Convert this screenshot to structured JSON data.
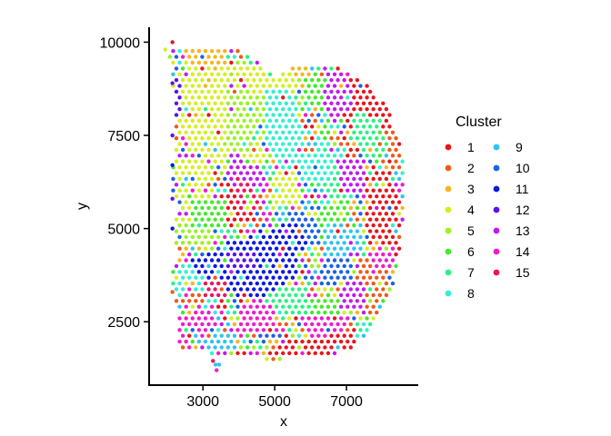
{
  "chart_data": {
    "type": "scatter",
    "title": "",
    "xlabel": "x",
    "ylabel": "y",
    "xlim": [
      1500,
      9000
    ],
    "ylim": [
      800,
      10400
    ],
    "x_ticks": [
      3000,
      5000,
      7000
    ],
    "y_ticks": [
      2500,
      5000,
      7500,
      10000
    ],
    "grid": false,
    "legend": {
      "title": "Cluster",
      "placement": "right",
      "columns": 2,
      "entries": [
        {
          "label": "1",
          "color": "#e8151b"
        },
        {
          "label": "2",
          "color": "#f05a17"
        },
        {
          "label": "3",
          "color": "#f7b421"
        },
        {
          "label": "4",
          "color": "#d5ef1e"
        },
        {
          "label": "5",
          "color": "#9af221"
        },
        {
          "label": "6",
          "color": "#43ea2b"
        },
        {
          "label": "7",
          "color": "#29f283"
        },
        {
          "label": "8",
          "color": "#2ff0d3"
        },
        {
          "label": "9",
          "color": "#2ec3f3"
        },
        {
          "label": "10",
          "color": "#1a62e6"
        },
        {
          "label": "11",
          "color": "#0a19e3"
        },
        {
          "label": "12",
          "color": "#5b11ed"
        },
        {
          "label": "13",
          "color": "#c21af0"
        },
        {
          "label": "14",
          "color": "#f01ccd"
        },
        {
          "label": "15",
          "color": "#ef145e"
        }
      ]
    },
    "spot_spacing": 180,
    "regions": [
      {
        "cluster": "1",
        "polygon": [
          [
            6700,
            9000
          ],
          [
            7600,
            9000
          ],
          [
            8300,
            8200
          ],
          [
            8200,
            7600
          ],
          [
            7500,
            7600
          ],
          [
            6800,
            8000
          ]
        ]
      },
      {
        "cluster": "1",
        "polygon": [
          [
            7500,
            6500
          ],
          [
            8300,
            6500
          ],
          [
            8500,
            5200
          ],
          [
            8300,
            4300
          ],
          [
            7600,
            4300
          ]
        ]
      },
      {
        "cluster": "1",
        "polygon": [
          [
            6000,
            2300
          ],
          [
            7000,
            2300
          ],
          [
            7500,
            1800
          ],
          [
            5500,
            1500
          ],
          [
            4800,
            1700
          ]
        ]
      },
      {
        "cluster": "1",
        "polygon": [
          [
            3700,
            6200
          ],
          [
            4300,
            6000
          ],
          [
            4500,
            5200
          ],
          [
            3800,
            5000
          ],
          [
            3200,
            5500
          ]
        ]
      },
      {
        "cluster": "2",
        "polygon": [
          [
            8100,
            7600
          ],
          [
            8400,
            7600
          ],
          [
            8500,
            6600
          ],
          [
            8200,
            6500
          ]
        ]
      },
      {
        "cluster": "2",
        "polygon": [
          [
            3500,
            4300
          ],
          [
            4300,
            4300
          ],
          [
            4400,
            3600
          ],
          [
            3600,
            3500
          ]
        ]
      },
      {
        "cluster": "2",
        "polygon": [
          [
            7300,
            4200
          ],
          [
            8200,
            4200
          ],
          [
            8100,
            2700
          ],
          [
            7500,
            2600
          ]
        ]
      },
      {
        "cluster": "2",
        "polygon": [
          [
            2200,
            3300
          ],
          [
            3000,
            3300
          ],
          [
            3000,
            2700
          ],
          [
            2200,
            2700
          ]
        ]
      },
      {
        "cluster": "3",
        "polygon": [
          [
            2500,
            9900
          ],
          [
            3700,
            9900
          ],
          [
            3700,
            9000
          ],
          [
            2600,
            9000
          ]
        ]
      },
      {
        "cluster": "3",
        "polygon": [
          [
            2200,
            8700
          ],
          [
            2900,
            8700
          ],
          [
            2900,
            7800
          ],
          [
            2200,
            7800
          ]
        ]
      },
      {
        "cluster": "3",
        "polygon": [
          [
            5400,
            9300
          ],
          [
            6000,
            9300
          ],
          [
            6000,
            8800
          ],
          [
            5400,
            8700
          ]
        ]
      },
      {
        "cluster": "4",
        "polygon": [
          [
            2300,
            9300
          ],
          [
            4600,
            9300
          ],
          [
            5100,
            8800
          ],
          [
            4600,
            6500
          ],
          [
            3600,
            6600
          ],
          [
            2300,
            7200
          ]
        ]
      },
      {
        "cluster": "4",
        "polygon": [
          [
            2200,
            6900
          ],
          [
            3200,
            6900
          ],
          [
            3500,
            5200
          ],
          [
            3000,
            4500
          ],
          [
            2200,
            4700
          ]
        ]
      },
      {
        "cluster": "4",
        "polygon": [
          [
            5000,
            9000
          ],
          [
            5400,
            9300
          ],
          [
            5700,
            8900
          ],
          [
            5500,
            8500
          ],
          [
            5000,
            8500
          ]
        ]
      },
      {
        "cluster": "4",
        "polygon": [
          [
            5000,
            6500
          ],
          [
            5500,
            6500
          ],
          [
            5800,
            5800
          ],
          [
            5300,
            5500
          ],
          [
            4900,
            5800
          ]
        ]
      },
      {
        "cluster": "5",
        "polygon": [
          [
            3700,
            8800
          ],
          [
            4700,
            8600
          ],
          [
            4800,
            7600
          ],
          [
            4200,
            7000
          ],
          [
            3600,
            7200
          ]
        ]
      },
      {
        "cluster": "5",
        "polygon": [
          [
            2200,
            5200
          ],
          [
            3300,
            5200
          ],
          [
            3300,
            4600
          ],
          [
            2200,
            4600
          ]
        ]
      },
      {
        "cluster": "6",
        "polygon": [
          [
            2700,
            5800
          ],
          [
            3700,
            5800
          ],
          [
            3600,
            5100
          ],
          [
            2700,
            5000
          ]
        ]
      },
      {
        "cluster": "6",
        "polygon": [
          [
            5800,
            9000
          ],
          [
            6500,
            9100
          ],
          [
            6800,
            8600
          ],
          [
            6500,
            8000
          ],
          [
            5900,
            8400
          ]
        ]
      },
      {
        "cluster": "6",
        "polygon": [
          [
            6000,
            5500
          ],
          [
            7000,
            5800
          ],
          [
            7300,
            5000
          ],
          [
            6600,
            4600
          ],
          [
            6000,
            4700
          ]
        ]
      },
      {
        "cluster": "6",
        "polygon": [
          [
            5700,
            3200
          ],
          [
            6800,
            3200
          ],
          [
            6900,
            2500
          ],
          [
            6000,
            2300
          ]
        ]
      },
      {
        "cluster": "7",
        "polygon": [
          [
            4800,
            3400
          ],
          [
            5900,
            3400
          ],
          [
            6000,
            2700
          ],
          [
            4800,
            2700
          ]
        ]
      },
      {
        "cluster": "7",
        "polygon": [
          [
            6200,
            6900
          ],
          [
            7200,
            6900
          ],
          [
            7500,
            6300
          ],
          [
            6800,
            5700
          ],
          [
            6200,
            6100
          ]
        ]
      },
      {
        "cluster": "7",
        "polygon": [
          [
            7200,
            8100
          ],
          [
            7900,
            8000
          ],
          [
            8200,
            7200
          ],
          [
            7700,
            6800
          ],
          [
            7100,
            7300
          ]
        ]
      },
      {
        "cluster": "8",
        "polygon": [
          [
            4700,
            8800
          ],
          [
            5400,
            8800
          ],
          [
            5800,
            7700
          ],
          [
            5800,
            6700
          ],
          [
            5200,
            6600
          ],
          [
            4700,
            7400
          ]
        ]
      },
      {
        "cluster": "8",
        "polygon": [
          [
            5700,
            7000
          ],
          [
            6700,
            7000
          ],
          [
            6600,
            6300
          ],
          [
            5700,
            6200
          ]
        ]
      },
      {
        "cluster": "8",
        "polygon": [
          [
            2300,
            4000
          ],
          [
            3000,
            4000
          ],
          [
            3100,
            3300
          ],
          [
            2300,
            3200
          ]
        ]
      },
      {
        "cluster": "8",
        "polygon": [
          [
            4300,
            2800
          ],
          [
            5000,
            2800
          ],
          [
            5000,
            2300
          ],
          [
            4300,
            2300
          ]
        ]
      },
      {
        "cluster": "9",
        "polygon": [
          [
            6300,
            5200
          ],
          [
            7400,
            5200
          ],
          [
            7500,
            4400
          ],
          [
            6400,
            4200
          ]
        ]
      },
      {
        "cluster": "9",
        "polygon": [
          [
            3000,
            2200
          ],
          [
            4000,
            2200
          ],
          [
            3900,
            1700
          ],
          [
            3000,
            1700
          ]
        ]
      },
      {
        "cluster": "10",
        "polygon": [
          [
            5400,
            5500
          ],
          [
            6200,
            5400
          ],
          [
            6300,
            4500
          ],
          [
            5400,
            4300
          ]
        ]
      },
      {
        "cluster": "10",
        "polygon": [
          [
            6200,
            4300
          ],
          [
            7200,
            4300
          ],
          [
            7200,
            3500
          ],
          [
            6300,
            3400
          ]
        ]
      },
      {
        "cluster": "11",
        "polygon": [
          [
            4000,
            4800
          ],
          [
            5500,
            5200
          ],
          [
            6000,
            4700
          ],
          [
            5500,
            3600
          ],
          [
            4500,
            3100
          ],
          [
            3500,
            3300
          ],
          [
            3000,
            3700
          ],
          [
            2600,
            4200
          ],
          [
            3200,
            4400
          ]
        ]
      },
      {
        "cluster": "12",
        "polygon": [
          [
            2200,
            9100
          ],
          [
            2400,
            9100
          ],
          [
            2400,
            8000
          ],
          [
            2200,
            8000
          ]
        ]
      },
      {
        "cluster": "12",
        "polygon": [
          [
            3700,
            4400
          ],
          [
            4500,
            4400
          ],
          [
            4500,
            3900
          ],
          [
            3700,
            3900
          ]
        ]
      },
      {
        "cluster": "13",
        "polygon": [
          [
            6500,
            9200
          ],
          [
            7000,
            9200
          ],
          [
            7200,
            8400
          ],
          [
            6700,
            7800
          ],
          [
            6300,
            8400
          ]
        ]
      },
      {
        "cluster": "13",
        "polygon": [
          [
            6700,
            6900
          ],
          [
            7500,
            6800
          ],
          [
            7500,
            6000
          ],
          [
            6800,
            6000
          ]
        ]
      },
      {
        "cluster": "13",
        "polygon": [
          [
            3700,
            7100
          ],
          [
            4700,
            6600
          ],
          [
            4700,
            6000
          ],
          [
            3800,
            6000
          ]
        ]
      },
      {
        "cluster": "13",
        "polygon": [
          [
            6800,
            3600
          ],
          [
            7500,
            3600
          ],
          [
            7500,
            2900
          ],
          [
            6800,
            2800
          ]
        ]
      },
      {
        "cluster": "14",
        "polygon": [
          [
            2200,
            3000
          ],
          [
            3300,
            3000
          ],
          [
            3400,
            2200
          ],
          [
            2300,
            1900
          ]
        ]
      },
      {
        "cluster": "14",
        "polygon": [
          [
            4000,
            3000
          ],
          [
            5000,
            3000
          ],
          [
            5000,
            2200
          ],
          [
            4000,
            2100
          ]
        ]
      },
      {
        "cluster": "14",
        "polygon": [
          [
            5700,
            2700
          ],
          [
            6900,
            2700
          ],
          [
            7000,
            2200
          ],
          [
            5800,
            2000
          ]
        ]
      },
      {
        "cluster": "14",
        "polygon": [
          [
            7600,
            4600
          ],
          [
            8300,
            4600
          ],
          [
            8300,
            3900
          ],
          [
            7700,
            3800
          ]
        ]
      },
      {
        "cluster": "15",
        "polygon": [
          [
            3900,
            6400
          ],
          [
            4500,
            6100
          ],
          [
            4600,
            5500
          ],
          [
            4000,
            5300
          ]
        ]
      },
      {
        "cluster": "15",
        "polygon": [
          [
            3000,
            3600
          ],
          [
            3700,
            3600
          ],
          [
            3700,
            3100
          ],
          [
            3000,
            3100
          ]
        ]
      }
    ],
    "default_cluster_order": [
      "4",
      "6",
      "8",
      "5",
      "9",
      "7",
      "13",
      "3",
      "14",
      "1",
      "10",
      "2"
    ],
    "tissue_outline": [
      [
        2000,
        9800
      ],
      [
        2600,
        9900
      ],
      [
        3700,
        9900
      ],
      [
        4200,
        9700
      ],
      [
        5000,
        9100
      ],
      [
        5500,
        9400
      ],
      [
        6600,
        9400
      ],
      [
        7200,
        9100
      ],
      [
        7700,
        8800
      ],
      [
        8100,
        8300
      ],
      [
        8400,
        7600
      ],
      [
        8600,
        6700
      ],
      [
        8600,
        5400
      ],
      [
        8500,
        4300
      ],
      [
        8300,
        3500
      ],
      [
        8100,
        2900
      ],
      [
        7700,
        2400
      ],
      [
        7400,
        2000
      ],
      [
        7100,
        1700
      ],
      [
        6300,
        1600
      ],
      [
        5300,
        1500
      ],
      [
        4700,
        1500
      ],
      [
        4200,
        1600
      ],
      [
        3700,
        1600
      ],
      [
        3300,
        1500
      ],
      [
        3200,
        1700
      ],
      [
        2700,
        1700
      ],
      [
        2300,
        1800
      ],
      [
        2300,
        2500
      ],
      [
        2200,
        3200
      ],
      [
        2100,
        3600
      ],
      [
        2300,
        4300
      ],
      [
        2200,
        5000
      ],
      [
        2300,
        5500
      ],
      [
        2100,
        6200
      ],
      [
        2200,
        7200
      ],
      [
        2200,
        8300
      ],
      [
        2100,
        9300
      ]
    ],
    "extra_points": [
      {
        "x": 2150,
        "y": 10000,
        "cluster": "1"
      },
      {
        "x": 1950,
        "y": 9800,
        "cluster": "4"
      },
      {
        "x": 3450,
        "y": 1350,
        "cluster": "9"
      },
      {
        "x": 3350,
        "y": 1350,
        "cluster": "9"
      },
      {
        "x": 3280,
        "y": 1450,
        "cluster": "15"
      },
      {
        "x": 3380,
        "y": 1200,
        "cluster": "14"
      },
      {
        "x": 2150,
        "y": 8900,
        "cluster": "12"
      },
      {
        "x": 2150,
        "y": 7500,
        "cluster": "12"
      },
      {
        "x": 2150,
        "y": 6700,
        "cluster": "11"
      },
      {
        "x": 2150,
        "y": 5800,
        "cluster": "12"
      },
      {
        "x": 2150,
        "y": 5000,
        "cluster": "11"
      },
      {
        "x": 2150,
        "y": 3300,
        "cluster": "2"
      }
    ]
  }
}
